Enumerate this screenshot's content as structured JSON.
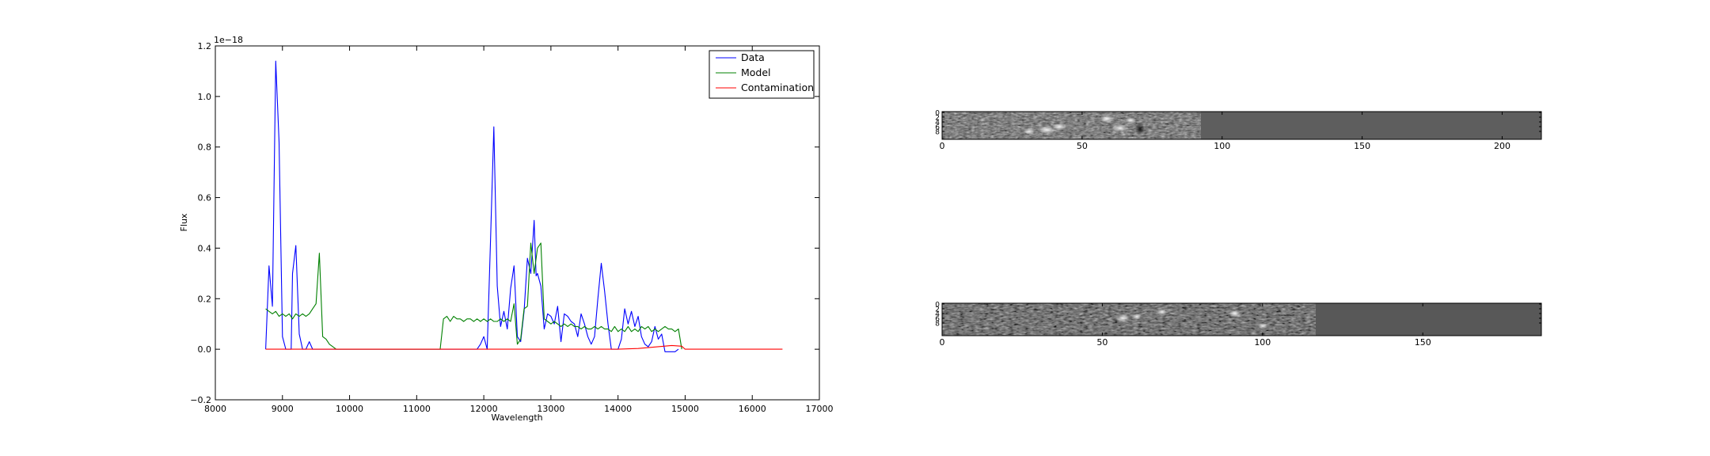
{
  "chart_data": [
    {
      "type": "line",
      "xlabel": "Wavelength",
      "ylabel": "Flux",
      "offset_text": "1e−18",
      "xlim": [
        8000,
        17000
      ],
      "ylim": [
        -0.2,
        1.2
      ],
      "xticks": [
        "8000",
        "9000",
        "10000",
        "11000",
        "12000",
        "13000",
        "14000",
        "15000",
        "16000",
        "17000"
      ],
      "yticks": [
        "−0.2",
        "0.0",
        "0.2",
        "0.4",
        "0.6",
        "0.8",
        "1.0",
        "1.2"
      ],
      "legend_position": "top-right",
      "grid": false,
      "series": [
        {
          "name": "Data",
          "color": "#0000ff",
          "x": [
            8750,
            8800,
            8850,
            8900,
            8950,
            9000,
            9050,
            9100,
            9130,
            9150,
            9200,
            9250,
            9300,
            9350,
            9400,
            9450,
            9500,
            11900,
            11950,
            12000,
            12050,
            12100,
            12150,
            12200,
            12250,
            12300,
            12350,
            12400,
            12450,
            12500,
            12550,
            12600,
            12650,
            12700,
            12750,
            12780,
            12800,
            12850,
            12900,
            12950,
            13000,
            13050,
            13100,
            13150,
            13200,
            13250,
            13300,
            13350,
            13400,
            13450,
            13500,
            13550,
            13600,
            13650,
            13700,
            13750,
            13800,
            13850,
            13900,
            13950,
            14000,
            14050,
            14100,
            14150,
            14200,
            14250,
            14300,
            14350,
            14400,
            14450,
            14500,
            14550,
            14600,
            14650,
            14700,
            14750,
            14800,
            14850,
            14900
          ],
          "y": [
            0.0,
            0.33,
            0.17,
            1.14,
            0.82,
            0.05,
            0.0,
            0.0,
            0.0,
            0.3,
            0.41,
            0.06,
            0.0,
            0.0,
            0.03,
            0.0,
            0.0,
            0.0,
            0.02,
            0.05,
            0.0,
            0.43,
            0.88,
            0.25,
            0.09,
            0.15,
            0.08,
            0.24,
            0.33,
            0.05,
            0.03,
            0.15,
            0.36,
            0.3,
            0.51,
            0.29,
            0.3,
            0.25,
            0.08,
            0.14,
            0.13,
            0.1,
            0.17,
            0.03,
            0.14,
            0.13,
            0.11,
            0.1,
            0.05,
            0.14,
            0.1,
            0.05,
            0.02,
            0.05,
            0.2,
            0.34,
            0.23,
            0.1,
            0.0,
            0.0,
            0.0,
            0.04,
            0.16,
            0.1,
            0.15,
            0.09,
            0.13,
            0.05,
            0.02,
            0.01,
            0.03,
            0.09,
            0.04,
            0.06,
            -0.01,
            -0.01,
            -0.01,
            -0.01,
            0.0
          ]
        },
        {
          "name": "Model",
          "color": "#008000",
          "x": [
            8750,
            8800,
            8850,
            8900,
            8950,
            9000,
            9050,
            9100,
            9150,
            9200,
            9250,
            9300,
            9350,
            9400,
            9450,
            9500,
            9550,
            9600,
            9650,
            9700,
            9750,
            9800,
            11350,
            11400,
            11450,
            11500,
            11550,
            11600,
            11650,
            11700,
            11750,
            11800,
            11850,
            11900,
            11950,
            12000,
            12050,
            12100,
            12150,
            12200,
            12250,
            12300,
            12350,
            12400,
            12450,
            12500,
            12550,
            12600,
            12650,
            12700,
            12750,
            12800,
            12850,
            12900,
            12950,
            13000,
            13050,
            13100,
            13150,
            13200,
            13250,
            13300,
            13350,
            13400,
            13450,
            13500,
            13550,
            13600,
            13650,
            13700,
            13750,
            13800,
            13850,
            13900,
            13950,
            14000,
            14050,
            14100,
            14150,
            14200,
            14250,
            14300,
            14350,
            14400,
            14450,
            14500,
            14550,
            14600,
            14650,
            14700,
            14750,
            14800,
            14850,
            14900,
            14950
          ],
          "y": [
            0.16,
            0.15,
            0.14,
            0.15,
            0.13,
            0.14,
            0.13,
            0.14,
            0.12,
            0.14,
            0.13,
            0.14,
            0.13,
            0.14,
            0.16,
            0.18,
            0.38,
            0.05,
            0.04,
            0.02,
            0.01,
            0.0,
            0.0,
            0.12,
            0.13,
            0.11,
            0.13,
            0.12,
            0.12,
            0.11,
            0.12,
            0.12,
            0.11,
            0.12,
            0.11,
            0.12,
            0.11,
            0.12,
            0.11,
            0.11,
            0.12,
            0.11,
            0.12,
            0.11,
            0.18,
            0.02,
            0.04,
            0.16,
            0.17,
            0.42,
            0.3,
            0.4,
            0.42,
            0.12,
            0.11,
            0.1,
            0.11,
            0.1,
            0.09,
            0.1,
            0.09,
            0.1,
            0.09,
            0.09,
            0.08,
            0.09,
            0.08,
            0.08,
            0.09,
            0.08,
            0.09,
            0.08,
            0.08,
            0.07,
            0.09,
            0.07,
            0.08,
            0.07,
            0.09,
            0.07,
            0.08,
            0.07,
            0.09,
            0.08,
            0.09,
            0.07,
            0.08,
            0.07,
            0.08,
            0.09,
            0.08,
            0.08,
            0.07,
            0.08,
            0.0
          ]
        },
        {
          "name": "Contamination",
          "color": "#ff0000",
          "x": [
            8750,
            11000,
            13500,
            14000,
            14300,
            14600,
            14800,
            14950,
            15000,
            16450
          ],
          "y": [
            0.0,
            0.0,
            0.0,
            0.0,
            0.003,
            0.01,
            0.015,
            0.012,
            0.0,
            0.0
          ]
        }
      ]
    },
    {
      "type": "heatmap",
      "xlim": [
        0,
        214
      ],
      "xticks": [
        "0",
        "50",
        "100",
        "150",
        "200"
      ],
      "yticks": [
        "0",
        "2",
        "4",
        "6",
        "8"
      ],
      "grid": false
    },
    {
      "type": "heatmap",
      "xlim": [
        0,
        187
      ],
      "xticks": [
        "0",
        "50",
        "100",
        "150"
      ],
      "yticks": [
        "0",
        "2",
        "4",
        "6",
        "8"
      ],
      "grid": false
    }
  ]
}
